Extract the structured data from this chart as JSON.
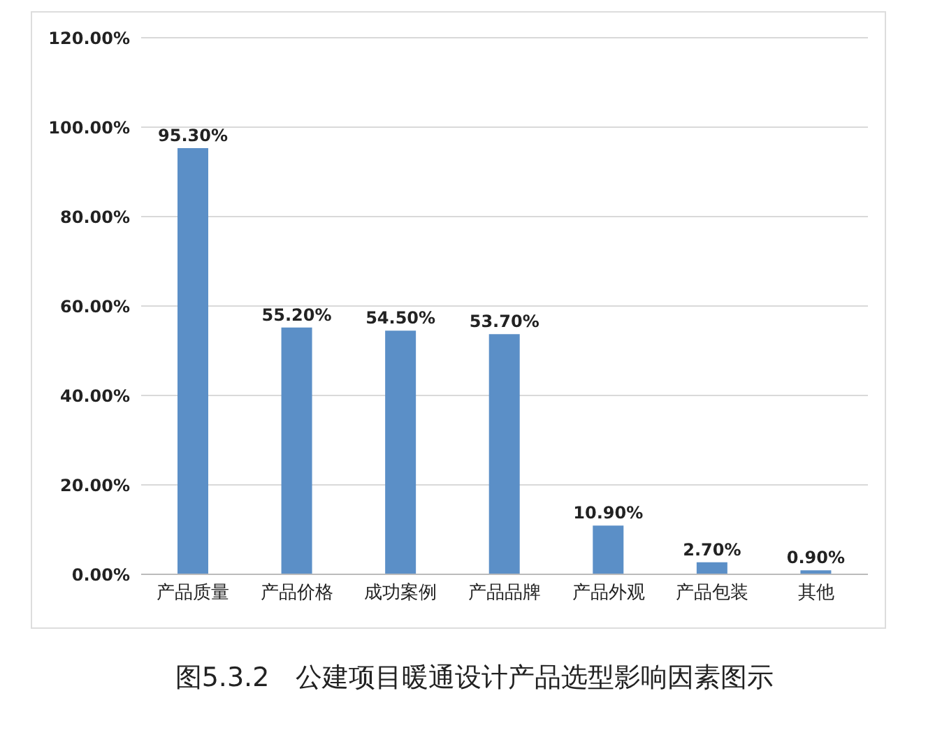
{
  "chart_data": {
    "type": "bar",
    "title": "图5.3.2　公建项目暖通设计产品选型影响因素图示",
    "categories": [
      "产品质量",
      "产品价格",
      "成功案例",
      "产品品牌",
      "产品外观",
      "产品包装",
      "其他"
    ],
    "values": [
      95.3,
      55.2,
      54.5,
      53.7,
      10.9,
      2.7,
      0.9
    ],
    "value_labels": [
      "95.30%",
      "55.20%",
      "54.50%",
      "53.70%",
      "10.90%",
      "2.70%",
      "0.90%"
    ],
    "color": "#5b8fc7",
    "ylim": [
      0,
      120
    ],
    "yticks": [
      {
        "value": 0,
        "label": "0.00%"
      },
      {
        "value": 20,
        "label": "20.00%"
      },
      {
        "value": 40,
        "label": "40.00%"
      },
      {
        "value": 60,
        "label": "60.00%"
      },
      {
        "value": 80,
        "label": "80.00%"
      },
      {
        "value": 100,
        "label": "100.00%"
      },
      {
        "value": 120,
        "label": "120.00%"
      }
    ],
    "grid": "y",
    "legend": false
  }
}
